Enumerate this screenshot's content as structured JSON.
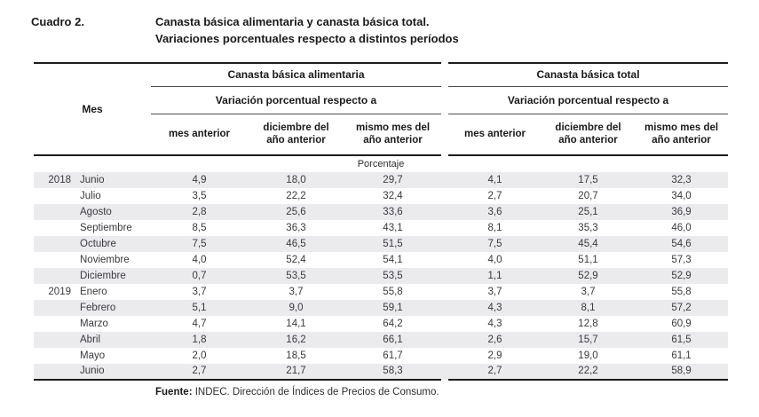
{
  "header": {
    "label": "Cuadro 2.",
    "title_line1": "Canasta básica alimentaria y canasta básica total.",
    "title_line2": "Variaciones porcentuales respecto a distintos períodos"
  },
  "table": {
    "mes_header": "Mes",
    "groups": [
      {
        "title": "Canasta básica alimentaria",
        "subtitle": "Variación porcentual respecto a",
        "columns": [
          "mes anterior",
          "diciembre del año anterior",
          "mismo mes del año anterior"
        ]
      },
      {
        "title": "Canasta básica total",
        "subtitle": "Variación porcentual respecto a",
        "columns": [
          "mes anterior",
          "diciembre del año anterior",
          "mismo mes del año anterior"
        ]
      }
    ],
    "unit_label": "Porcentaje",
    "rows": [
      {
        "year": "2018",
        "month": "Junio",
        "cba": [
          "4,9",
          "18,0",
          "29,7"
        ],
        "cbt": [
          "4,1",
          "17,5",
          "32,3"
        ]
      },
      {
        "year": "",
        "month": "Julio",
        "cba": [
          "3,5",
          "22,2",
          "32,4"
        ],
        "cbt": [
          "2,7",
          "20,7",
          "34,0"
        ]
      },
      {
        "year": "",
        "month": "Agosto",
        "cba": [
          "2,8",
          "25,6",
          "33,6"
        ],
        "cbt": [
          "3,6",
          "25,1",
          "36,9"
        ]
      },
      {
        "year": "",
        "month": "Septiembre",
        "cba": [
          "8,5",
          "36,3",
          "43,1"
        ],
        "cbt": [
          "8,1",
          "35,3",
          "46,0"
        ]
      },
      {
        "year": "",
        "month": "Octubre",
        "cba": [
          "7,5",
          "46,5",
          "51,5"
        ],
        "cbt": [
          "7,5",
          "45,4",
          "54,6"
        ]
      },
      {
        "year": "",
        "month": "Noviembre",
        "cba": [
          "4,0",
          "52,4",
          "54,1"
        ],
        "cbt": [
          "4,0",
          "51,1",
          "57,3"
        ]
      },
      {
        "year": "",
        "month": "Diciembre",
        "cba": [
          "0,7",
          "53,5",
          "53,5"
        ],
        "cbt": [
          "1,1",
          "52,9",
          "52,9"
        ]
      },
      {
        "year": "2019",
        "month": "Enero",
        "cba": [
          "3,7",
          "3,7",
          "55,8"
        ],
        "cbt": [
          "3,7",
          "3,7",
          "55,8"
        ]
      },
      {
        "year": "",
        "month": "Febrero",
        "cba": [
          "5,1",
          "9,0",
          "59,1"
        ],
        "cbt": [
          "4,3",
          "8,1",
          "57,2"
        ]
      },
      {
        "year": "",
        "month": "Marzo",
        "cba": [
          "4,7",
          "14,1",
          "64,2"
        ],
        "cbt": [
          "4,3",
          "12,8",
          "60,9"
        ]
      },
      {
        "year": "",
        "month": "Abril",
        "cba": [
          "1,8",
          "16,2",
          "66,1"
        ],
        "cbt": [
          "2,6",
          "15,7",
          "61,5"
        ]
      },
      {
        "year": "",
        "month": "Mayo",
        "cba": [
          "2,0",
          "18,5",
          "61,7"
        ],
        "cbt": [
          "2,9",
          "19,0",
          "61,1"
        ]
      },
      {
        "year": "",
        "month": "Junio",
        "cba": [
          "2,7",
          "21,7",
          "58,3"
        ],
        "cbt": [
          "2,7",
          "22,2",
          "58,9"
        ]
      }
    ]
  },
  "footer": {
    "source_label": "Fuente:",
    "source_text": "INDEC. Dirección de Índices de Precios de Consumo."
  },
  "colors": {
    "stripe": "#ebebee",
    "rule_heavy": "#1c1c1c",
    "rule_light": "#4d4d4d",
    "text": "#3a3a3e"
  }
}
